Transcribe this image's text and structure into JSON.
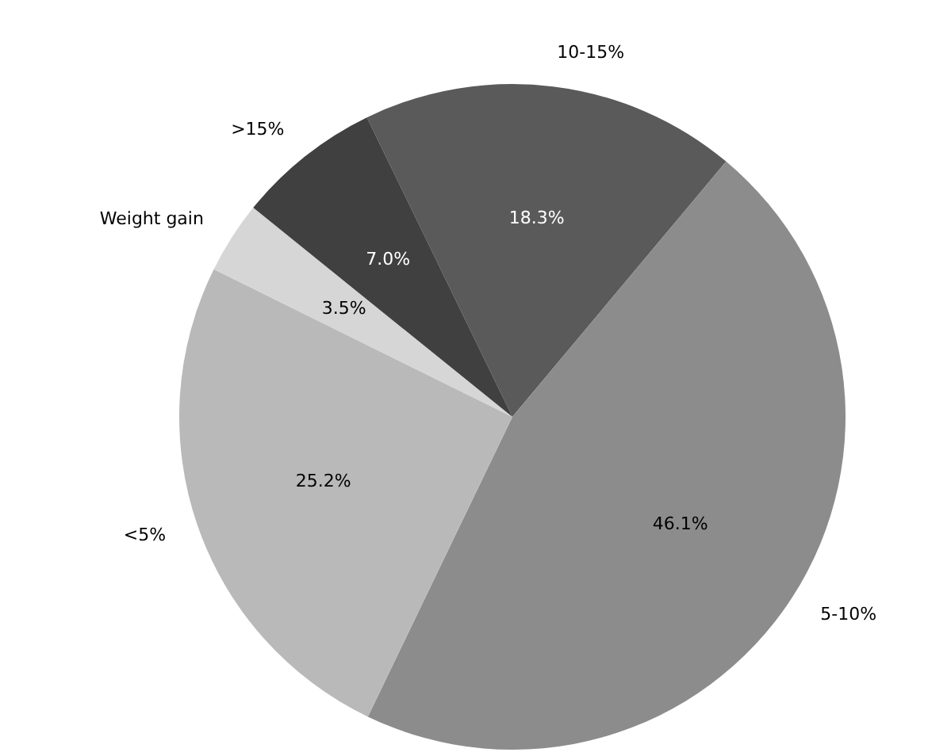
{
  "chart_data": {
    "type": "pie",
    "categories": [
      "10-15%",
      "5-10%",
      "<5%",
      "Weight gain",
      ">15%"
    ],
    "values": [
      18.3,
      46.1,
      25.2,
      3.5,
      7.0
    ],
    "value_labels": [
      "18.3%",
      "46.1%",
      "25.2%",
      "3.5%",
      "7.0%"
    ],
    "colors": [
      "#5a5a5a",
      "#8c8c8c",
      "#b9b9b9",
      "#d6d6d6",
      "#404040"
    ],
    "legend": false
  }
}
